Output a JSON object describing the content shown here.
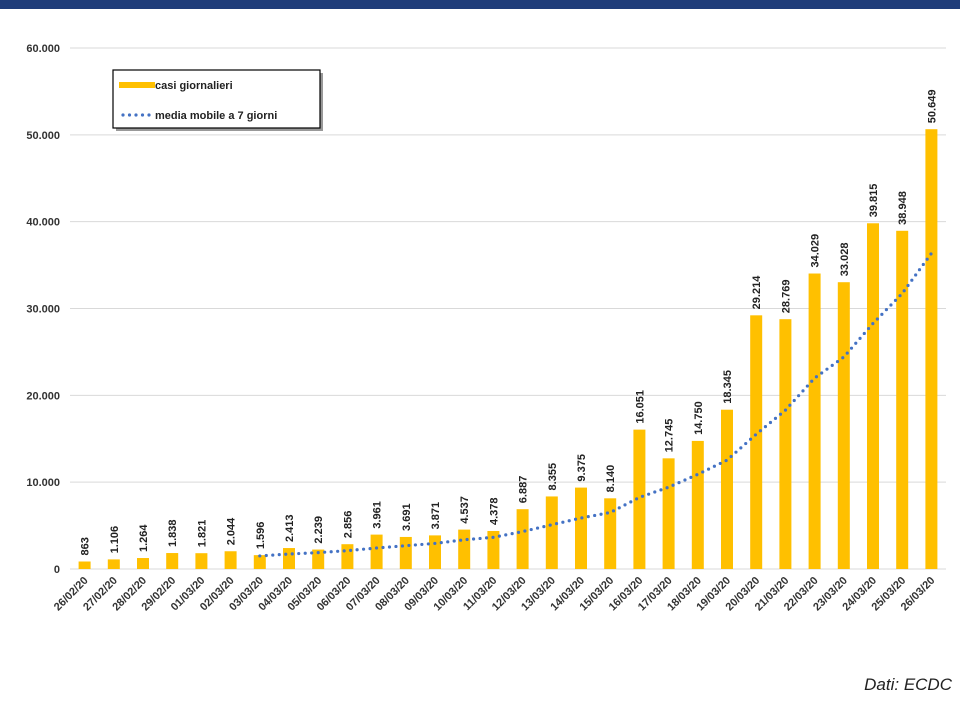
{
  "chart_data": {
    "type": "bar",
    "categories": [
      "26/02/20",
      "27/02/20",
      "28/02/20",
      "29/02/20",
      "01/03/20",
      "02/03/20",
      "03/03/20",
      "04/03/20",
      "05/03/20",
      "06/03/20",
      "07/03/20",
      "08/03/20",
      "09/03/20",
      "10/03/20",
      "11/03/20",
      "12/03/20",
      "13/03/20",
      "14/03/20",
      "15/03/20",
      "16/03/20",
      "17/03/20",
      "18/03/20",
      "19/03/20",
      "20/03/20",
      "21/03/20",
      "22/03/20",
      "23/03/20",
      "24/03/20",
      "25/03/20",
      "26/03/20"
    ],
    "series": [
      {
        "name": "casi giornalieri",
        "color": "#ffc000",
        "type": "bar",
        "values": [
          863,
          1106,
          1264,
          1838,
          1821,
          2044,
          1596,
          2413,
          2239,
          2856,
          3961,
          3691,
          3871,
          4537,
          4378,
          6887,
          8355,
          9375,
          8140,
          16051,
          12745,
          14750,
          18345,
          29214,
          28769,
          34029,
          33028,
          39815,
          38948,
          50649
        ],
        "value_labels": [
          "863",
          "1.106",
          "1.264",
          "1.838",
          "1.821",
          "2.044",
          "1.596",
          "2.413",
          "2.239",
          "2.856",
          "3.961",
          "3.691",
          "3.871",
          "4.537",
          "4.378",
          "6.887",
          "8.355",
          "9.375",
          "8.140",
          "16.051",
          "12.745",
          "14.750",
          "18.345",
          "29.214",
          "28.769",
          "34.029",
          "33.028",
          "39.815",
          "38.948",
          "50.649"
        ]
      },
      {
        "name": "media mobile a 7 giorni",
        "color": "#4472c4",
        "type": "line",
        "values": [
          null,
          null,
          null,
          null,
          null,
          null,
          1505,
          1726,
          1888,
          2115,
          2419,
          2686,
          2947,
          3367,
          3648,
          4312,
          5097,
          5871,
          6506,
          8246,
          9419,
          10900,
          12537,
          15517,
          18288,
          21986,
          24411,
          28279,
          31735,
          36350
        ]
      }
    ],
    "ylim": [
      0,
      60000
    ],
    "yticks": [
      0,
      {
        "value": 10000,
        "label": "10.000"
      },
      {
        "value": 20000,
        "label": "20.000"
      },
      {
        "value": 30000,
        "label": "30.000"
      },
      {
        "value": 40000,
        "label": "40.000"
      },
      {
        "value": 50000,
        "label": "50.000"
      },
      {
        "value": 60000,
        "label": "60.000"
      }
    ],
    "grid": true,
    "legend": "top-left",
    "source": "Dati: ECDC"
  }
}
